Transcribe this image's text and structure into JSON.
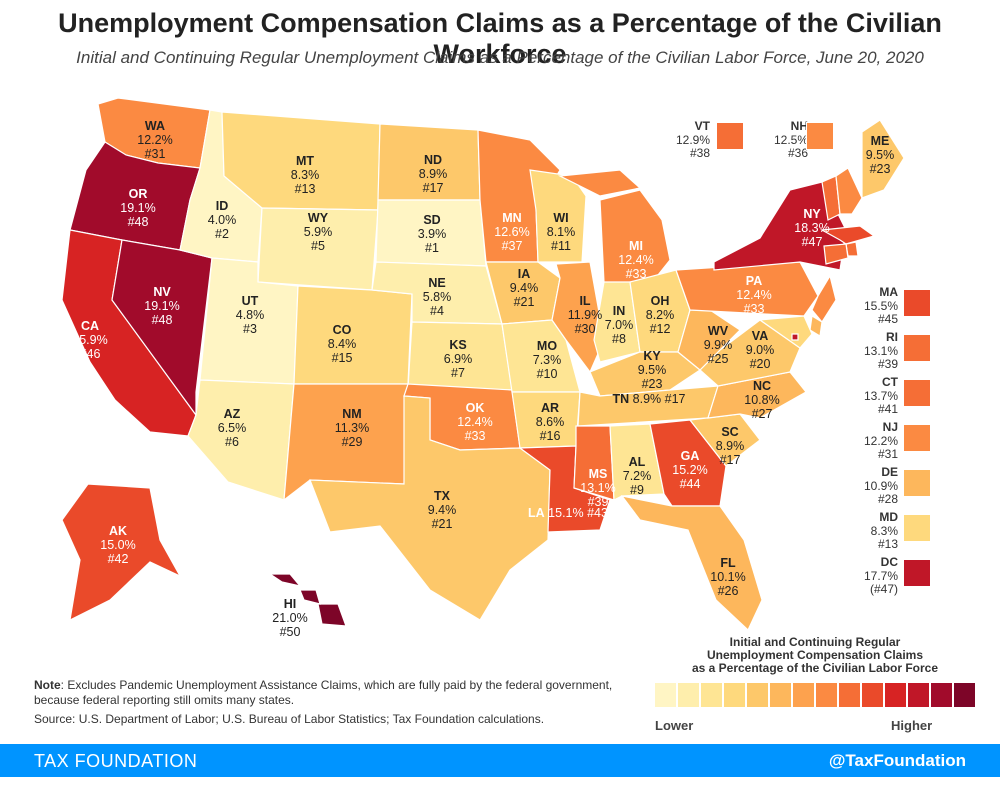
{
  "title": "Unemployment Compensation Claims as a Percentage of the Civilian Workforce",
  "subtitle": "Initial and Continuing Regular Unemployment Claims as a Percentage of the Civilian Labor Force, June 20, 2020",
  "colors": {
    "scale": [
      "#fff5c4",
      "#feeeac",
      "#fee594",
      "#fed97d",
      "#fdc86a",
      "#fdb75c",
      "#fda24e",
      "#fb8a42",
      "#f56e36",
      "#ea4a2a",
      "#d72323",
      "#c01728",
      "#a10b2b",
      "#7d0528"
    ],
    "footer": "#0094ff"
  },
  "states": [
    {
      "abbr": "WA",
      "value": "12.2%",
      "rank": "#31",
      "level": 7
    },
    {
      "abbr": "OR",
      "value": "19.1%",
      "rank": "#48",
      "level": 12
    },
    {
      "abbr": "CA",
      "value": "15.9%",
      "rank": "#46",
      "level": 10
    },
    {
      "abbr": "NV",
      "value": "19.1%",
      "rank": "#48",
      "level": 12
    },
    {
      "abbr": "ID",
      "value": "4.0%",
      "rank": "#2",
      "level": 0
    },
    {
      "abbr": "MT",
      "value": "8.3%",
      "rank": "#13",
      "level": 3
    },
    {
      "abbr": "WY",
      "value": "5.9%",
      "rank": "#5",
      "level": 1
    },
    {
      "abbr": "UT",
      "value": "4.8%",
      "rank": "#3",
      "level": 0
    },
    {
      "abbr": "AZ",
      "value": "6.5%",
      "rank": "#6",
      "level": 1
    },
    {
      "abbr": "CO",
      "value": "8.4%",
      "rank": "#15",
      "level": 3
    },
    {
      "abbr": "NM",
      "value": "11.3%",
      "rank": "#29",
      "level": 6
    },
    {
      "abbr": "ND",
      "value": "8.9%",
      "rank": "#17",
      "level": 4
    },
    {
      "abbr": "SD",
      "value": "3.9%",
      "rank": "#1",
      "level": 0
    },
    {
      "abbr": "NE",
      "value": "5.8%",
      "rank": "#4",
      "level": 1
    },
    {
      "abbr": "KS",
      "value": "6.9%",
      "rank": "#7",
      "level": 2
    },
    {
      "abbr": "OK",
      "value": "12.4%",
      "rank": "#33",
      "level": 7
    },
    {
      "abbr": "TX",
      "value": "9.4%",
      "rank": "#21",
      "level": 4
    },
    {
      "abbr": "MN",
      "value": "12.6%",
      "rank": "#37",
      "level": 7
    },
    {
      "abbr": "IA",
      "value": "9.4%",
      "rank": "#21",
      "level": 4
    },
    {
      "abbr": "MO",
      "value": "7.3%",
      "rank": "#10",
      "level": 2
    },
    {
      "abbr": "AR",
      "value": "8.6%",
      "rank": "#16",
      "level": 3
    },
    {
      "abbr": "LA",
      "value": "15.1%",
      "rank": "#43",
      "level": 9
    },
    {
      "abbr": "WI",
      "value": "8.1%",
      "rank": "#11",
      "level": 3
    },
    {
      "abbr": "IL",
      "value": "11.9%",
      "rank": "#30",
      "level": 6
    },
    {
      "abbr": "MI",
      "value": "12.4%",
      "rank": "#33",
      "level": 7
    },
    {
      "abbr": "IN",
      "value": "7.0%",
      "rank": "#8",
      "level": 2
    },
    {
      "abbr": "OH",
      "value": "8.2%",
      "rank": "#12",
      "level": 3
    },
    {
      "abbr": "KY",
      "value": "9.5%",
      "rank": "#23",
      "level": 4
    },
    {
      "abbr": "TN",
      "value": "8.9%",
      "rank": "#17",
      "level": 4
    },
    {
      "abbr": "MS",
      "value": "13.1%",
      "rank": "#39",
      "level": 8
    },
    {
      "abbr": "AL",
      "value": "7.2%",
      "rank": "#9",
      "level": 2
    },
    {
      "abbr": "GA",
      "value": "15.2%",
      "rank": "#44",
      "level": 9
    },
    {
      "abbr": "FL",
      "value": "10.1%",
      "rank": "#26",
      "level": 5
    },
    {
      "abbr": "SC",
      "value": "8.9%",
      "rank": "#17",
      "level": 4
    },
    {
      "abbr": "NC",
      "value": "10.8%",
      "rank": "#27",
      "level": 5
    },
    {
      "abbr": "VA",
      "value": "9.0%",
      "rank": "#20",
      "level": 4
    },
    {
      "abbr": "WV",
      "value": "9.9%",
      "rank": "#25",
      "level": 5
    },
    {
      "abbr": "PA",
      "value": "12.4%",
      "rank": "#33",
      "level": 7
    },
    {
      "abbr": "NY",
      "value": "18.3%",
      "rank": "#47",
      "level": 11
    },
    {
      "abbr": "ME",
      "value": "9.5%",
      "rank": "#23",
      "level": 4
    },
    {
      "abbr": "AK",
      "value": "15.0%",
      "rank": "#42",
      "level": 9
    },
    {
      "abbr": "HI",
      "value": "21.0%",
      "rank": "#50",
      "level": 13
    }
  ],
  "small_states_top": [
    {
      "abbr": "VT",
      "value": "12.9%",
      "rank": "#38",
      "level": 8
    },
    {
      "abbr": "NH",
      "value": "12.5%",
      "rank": "#36",
      "level": 7
    }
  ],
  "small_states_side": [
    {
      "abbr": "MA",
      "value": "15.5%",
      "rank": "#45",
      "level": 9
    },
    {
      "abbr": "RI",
      "value": "13.1%",
      "rank": "#39",
      "level": 8
    },
    {
      "abbr": "CT",
      "value": "13.7%",
      "rank": "#41",
      "level": 8
    },
    {
      "abbr": "NJ",
      "value": "12.2%",
      "rank": "#31",
      "level": 7
    },
    {
      "abbr": "DE",
      "value": "10.9%",
      "rank": "#28",
      "level": 5
    },
    {
      "abbr": "MD",
      "value": "8.3%",
      "rank": "#13",
      "level": 3
    },
    {
      "abbr": "DC",
      "value": "17.7%",
      "rank": "(#47)",
      "level": 11
    }
  ],
  "legend": {
    "title_lines": [
      "Initial and Continuing Regular",
      "Unemployment Compensation Claims",
      "as a Percentage of the Civilian Labor Force"
    ],
    "low_label": "Lower",
    "high_label": "Higher"
  },
  "note": {
    "label": "Note",
    "text": ": Excludes Pandemic Unemployment Assistance Claims, which are fully paid by the federal government, because federal reporting still omits many states."
  },
  "source": "Source: U.S. Department of Labor; U.S. Bureau of Labor Statistics; Tax Foundation calculations.",
  "footer": {
    "brand": "TAX FOUNDATION",
    "handle": "@TaxFoundation"
  }
}
